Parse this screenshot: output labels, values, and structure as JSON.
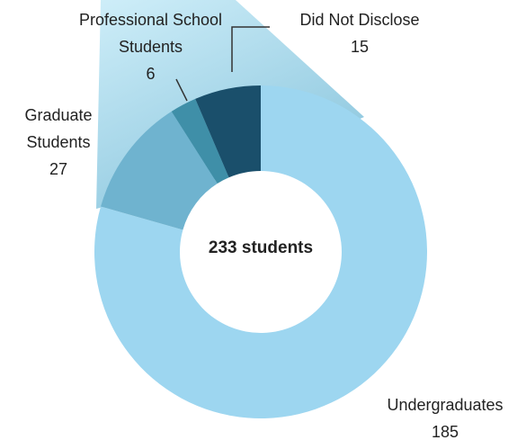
{
  "chart_data": {
    "type": "donut",
    "center_label": "233 students",
    "categories": [
      "Undergraduates",
      "Graduate Students",
      "Professional School Students",
      "Did Not Disclose"
    ],
    "values": [
      185,
      27,
      6,
      15
    ],
    "colors": [
      "#9dd6f0",
      "#6fb3cf",
      "#3f8fa8",
      "#1a4f6b"
    ]
  }
}
